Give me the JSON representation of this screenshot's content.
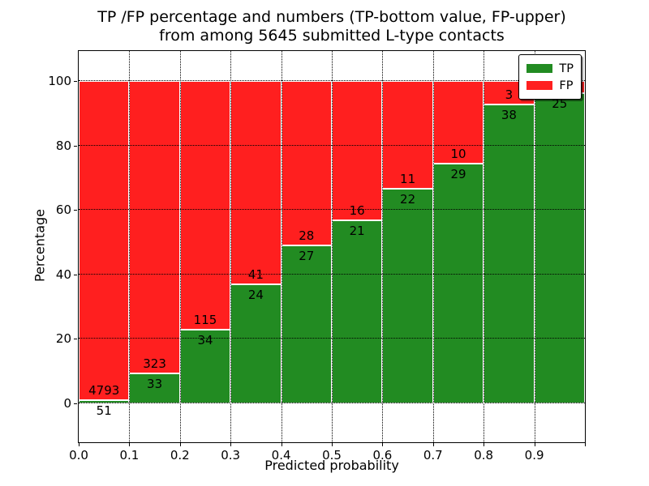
{
  "chart_data": {
    "type": "bar",
    "stacked_percentage": true,
    "title_lines": [
      "TP /FP percentage and numbers (TP-bottom value, FP-upper)",
      "from among 5645 submitted L-type contacts"
    ],
    "total_submitted": 5645,
    "xlabel": "Predicted probability",
    "ylabel": "Percentage",
    "xlim": [
      0,
      1
    ],
    "ylim": [
      -12.1,
      109.3
    ],
    "grid": true,
    "x_ticks": [
      {
        "pos": 0.0,
        "label": "0.0"
      },
      {
        "pos": 0.1,
        "label": "0.1"
      },
      {
        "pos": 0.2,
        "label": "0.2"
      },
      {
        "pos": 0.3,
        "label": "0.3"
      },
      {
        "pos": 0.4,
        "label": "0.4"
      },
      {
        "pos": 0.5,
        "label": "0.5"
      },
      {
        "pos": 0.6,
        "label": "0.6"
      },
      {
        "pos": 0.7,
        "label": "0.7"
      },
      {
        "pos": 0.8,
        "label": "0.8"
      },
      {
        "pos": 0.9,
        "label": "0.9"
      },
      {
        "pos": 1.0,
        "label": ""
      }
    ],
    "y_ticks": [
      0,
      20,
      40,
      60,
      80,
      100
    ],
    "legend": {
      "position": "upper right",
      "items": [
        {
          "label": "TP",
          "color": "#228b22"
        },
        {
          "label": "FP",
          "color": "#ff1f1f"
        }
      ]
    },
    "bins": [
      {
        "range": [
          0.0,
          0.1
        ],
        "tp": 51,
        "fp": 4793
      },
      {
        "range": [
          0.1,
          0.2
        ],
        "tp": 33,
        "fp": 323
      },
      {
        "range": [
          0.2,
          0.3
        ],
        "tp": 34,
        "fp": 115
      },
      {
        "range": [
          0.3,
          0.4
        ],
        "tp": 24,
        "fp": 41
      },
      {
        "range": [
          0.4,
          0.5
        ],
        "tp": 27,
        "fp": 28
      },
      {
        "range": [
          0.5,
          0.6
        ],
        "tp": 21,
        "fp": 16
      },
      {
        "range": [
          0.6,
          0.7
        ],
        "tp": 22,
        "fp": 11
      },
      {
        "range": [
          0.7,
          0.8
        ],
        "tp": 29,
        "fp": 10
      },
      {
        "range": [
          0.8,
          0.9
        ],
        "tp": 38,
        "fp": 3
      },
      {
        "range": [
          0.9,
          1.0
        ],
        "tp": 25,
        "fp": 1,
        "fp_label_visible": false
      }
    ]
  }
}
